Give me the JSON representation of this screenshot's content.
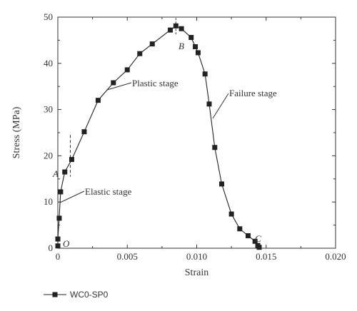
{
  "chart_data": {
    "type": "line",
    "xlabel": "Strain",
    "ylabel": "Stress (MPa)",
    "xlim": [
      0,
      0.02
    ],
    "ylim": [
      0,
      50
    ],
    "x_ticks": [
      "0",
      "0.005",
      "0.010",
      "0.015",
      "0.020"
    ],
    "y_ticks": [
      "0",
      "10",
      "20",
      "30",
      "40",
      "50"
    ],
    "grid": false,
    "legend_placement": "bottom-left",
    "series": [
      {
        "name": "WC0-SP0",
        "color": "#222222",
        "marker": "square",
        "points": [
          [
            0.0,
            0.5
          ],
          [
            0.0,
            2.0
          ],
          [
            0.0001,
            6.5
          ],
          [
            0.0002,
            12.2
          ],
          [
            0.0005,
            16.5
          ],
          [
            0.001,
            19.2
          ],
          [
            0.0019,
            25.2
          ],
          [
            0.0029,
            32.0
          ],
          [
            0.004,
            35.8
          ],
          [
            0.005,
            38.6
          ],
          [
            0.0059,
            42.1
          ],
          [
            0.0068,
            44.2
          ],
          [
            0.0081,
            47.2
          ],
          [
            0.0085,
            48.1
          ],
          [
            0.0089,
            47.5
          ],
          [
            0.0096,
            45.6
          ],
          [
            0.0099,
            43.6
          ],
          [
            0.0101,
            42.3
          ],
          [
            0.0106,
            37.7
          ],
          [
            0.0109,
            31.2
          ],
          [
            0.0113,
            21.8
          ],
          [
            0.0118,
            13.9
          ],
          [
            0.0125,
            7.4
          ],
          [
            0.0131,
            4.2
          ],
          [
            0.0137,
            2.7
          ],
          [
            0.0142,
            1.5
          ],
          [
            0.0144,
            0.6
          ],
          [
            0.0145,
            0.2
          ]
        ]
      }
    ],
    "annotations": [
      {
        "text": "Plastic stage",
        "style": "normal"
      },
      {
        "text": "Failure stage",
        "style": "normal"
      },
      {
        "text": "Elastic stage",
        "style": "normal"
      },
      {
        "text": "A",
        "style": "italic"
      },
      {
        "text": "B",
        "style": "italic"
      },
      {
        "text": "C",
        "style": "italic"
      },
      {
        "text": "O",
        "style": "italic"
      }
    ]
  }
}
